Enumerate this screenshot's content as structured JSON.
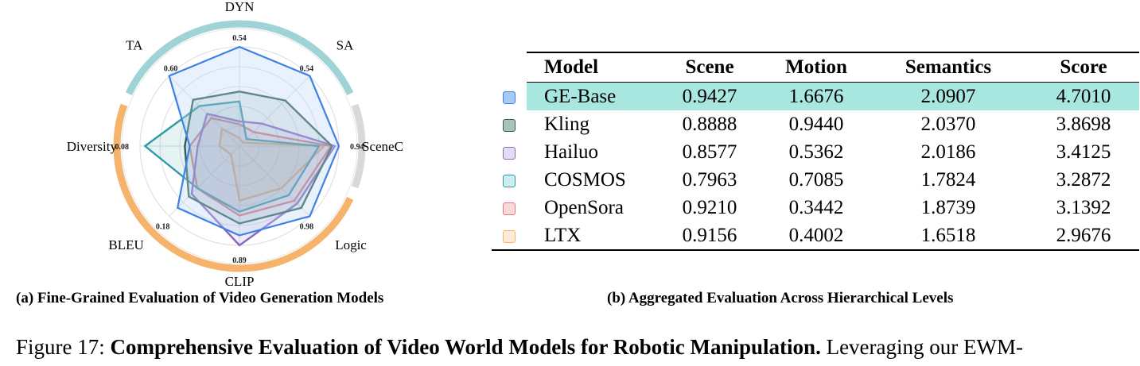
{
  "chart_data": [
    {
      "type": "radar",
      "axes": [
        "DYN",
        "SA",
        "SceneC",
        "Logic",
        "CLIP",
        "BLEU",
        "Diversity",
        "TA"
      ],
      "axis_max_labels": [
        "0.54",
        "0.54",
        "0.94",
        "0.98",
        "0.89",
        "0.18",
        "0.08",
        "0.60"
      ],
      "groups": [
        {
          "color": "#9fd3d6",
          "axes": [
            "TA",
            "DYN",
            "SA"
          ]
        },
        {
          "color": "#d9d9d9",
          "axes": [
            "SceneC"
          ]
        },
        {
          "color": "#f5b36b",
          "axes": [
            "Logic",
            "CLIP",
            "BLEU",
            "Diversity"
          ]
        }
      ],
      "series": [
        {
          "name": "GE-Base",
          "color": "#3b82e6",
          "fill": "#bdd7f7",
          "values": [
            1.0,
            1.0,
            1.0,
            1.0,
            0.9,
            0.88,
            0.5,
            1.0
          ]
        },
        {
          "name": "Kling",
          "color": "#2e5e52",
          "fill": "#2e5e52",
          "values": [
            0.55,
            0.65,
            0.93,
            0.88,
            0.78,
            0.72,
            0.55,
            0.66
          ]
        },
        {
          "name": "Hailuo",
          "color": "#8a66c4",
          "fill": "#8a66c4",
          "values": [
            0.25,
            0.32,
            0.96,
            0.82,
            1.0,
            0.68,
            0.42,
            0.46
          ]
        },
        {
          "name": "COSMOS",
          "color": "#2e99a5",
          "fill": "#2e99a5",
          "values": [
            0.45,
            0.1,
            0.8,
            0.7,
            0.66,
            0.6,
            0.95,
            0.57
          ]
        },
        {
          "name": "OpenSora",
          "color": "#e07a7a",
          "fill": "#e07a7a",
          "values": [
            0.22,
            0.2,
            0.92,
            0.78,
            0.7,
            0.6,
            0.5,
            0.4
          ]
        },
        {
          "name": "LTX",
          "color": "#f2b36b",
          "fill": "#f2b36b",
          "values": [
            0.08,
            0.05,
            0.85,
            0.6,
            0.55,
            0.12,
            0.2,
            0.25
          ]
        }
      ]
    },
    {
      "type": "table",
      "columns": [
        "Model",
        "Scene",
        "Motion",
        "Semantics",
        "Score"
      ],
      "rows": [
        {
          "model": "GE-Base",
          "scene": "0.9427",
          "motion": "1.6676",
          "semantics": "2.0907",
          "score": "4.7010",
          "swatch": "#a9c9f5",
          "swatch_border": "#3b82e6"
        },
        {
          "model": "Kling",
          "scene": "0.8888",
          "motion": "0.9440",
          "semantics": "2.0370",
          "score": "3.8698",
          "swatch": "#a6c4bb",
          "swatch_border": "#2e5e52"
        },
        {
          "model": "Hailuo",
          "scene": "0.8577",
          "motion": "0.5362",
          "semantics": "2.0186",
          "score": "3.4125",
          "swatch": "#e5dbf3",
          "swatch_border": "#8a66c4"
        },
        {
          "model": "COSMOS",
          "scene": "0.7963",
          "motion": "0.7085",
          "semantics": "1.7824",
          "score": "3.2872",
          "swatch": "#cdeef0",
          "swatch_border": "#2e99a5"
        },
        {
          "model": "OpenSora",
          "scene": "0.9210",
          "motion": "0.3442",
          "semantics": "1.8739",
          "score": "3.1392",
          "swatch": "#f8dada",
          "swatch_border": "#e07a7a"
        },
        {
          "model": "LTX",
          "scene": "0.9156",
          "motion": "0.4002",
          "semantics": "1.6518",
          "score": "2.9676",
          "swatch": "#fdebd3",
          "swatch_border": "#f2b36b"
        }
      ],
      "highlight_row": "GE-Base",
      "highlight_color": "#a8e6e0"
    }
  ],
  "captions": {
    "a": "(a) Fine-Grained Evaluation of Video Generation Models",
    "b": "(b) Aggregated Evaluation Across Hierarchical Levels",
    "figure_label": "Figure 17: ",
    "figure_title": "Comprehensive Evaluation of Video World Models for Robotic Manipulation.",
    "figure_tail": " Leveraging our EWM-"
  }
}
